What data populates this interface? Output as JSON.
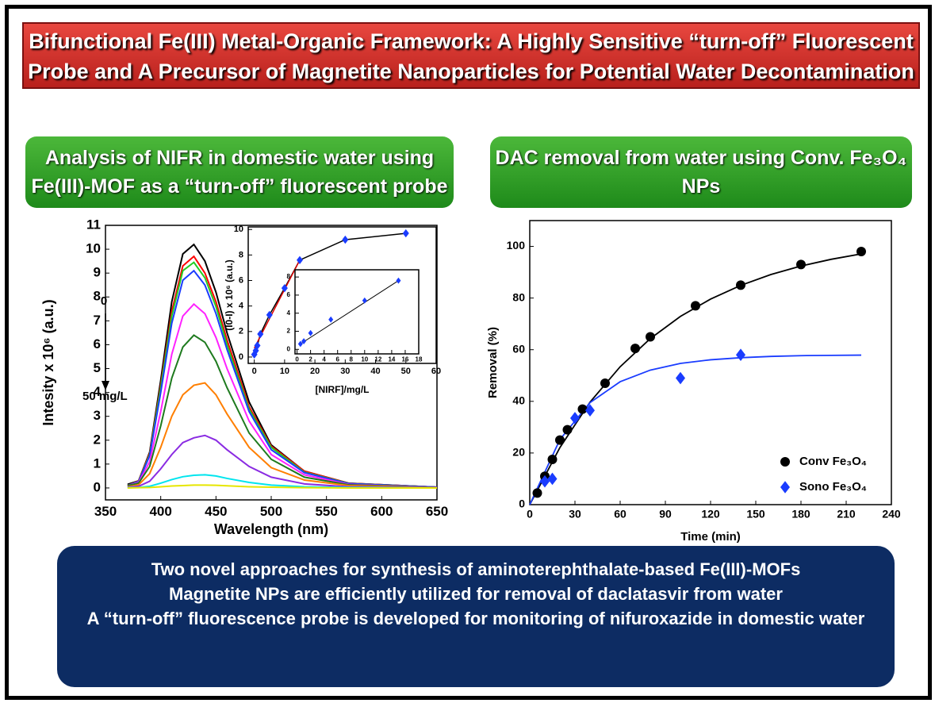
{
  "header": {
    "title": [
      "Bifunctional Fe(III) Metal-Organic Framework: A Highly Sensitive “turn-off” Fluorescent",
      "Probe and A Precursor of Magnetite Nanoparticles for Potential Water Decontamination"
    ]
  },
  "left_panel": {
    "heading": [
      "Analysis of NIFR in domestic water using",
      "Fe(III)-MOF as a “turn-off” fluorescent probe"
    ]
  },
  "right_panel": {
    "heading": [
      "DAC removal from water using Conv. Fe₃O₄",
      "NPs"
    ]
  },
  "summary": [
    "Two novel approaches for synthesis of aminoterephthalate-based Fe(III)-MOFs",
    "Magnetite NPs are efficiently utilized for removal of daclatasvir from water",
    "A “turn-off” fluorescence probe is developed for monitoring of nifuroxazide in domestic water"
  ],
  "chart_data": [
    {
      "type": "line",
      "xlabel": "Wavelength (nm)",
      "ylabel": "Intesity x 10⁶ (a.u.)",
      "annotations": [
        "0",
        "50 mg/L"
      ],
      "x": [
        370,
        380,
        390,
        400,
        410,
        420,
        430,
        440,
        450,
        460,
        480,
        500,
        530,
        570,
        650
      ],
      "series": [
        {
          "color": "#000000",
          "values": [
            0.15,
            0.3,
            1.5,
            4.5,
            7.8,
            9.8,
            10.2,
            9.5,
            8.2,
            6.5,
            3.6,
            1.8,
            0.7,
            0.2,
            0.03
          ]
        },
        {
          "color": "#ff0000",
          "values": [
            0.1,
            0.3,
            1.45,
            4.3,
            7.4,
            9.3,
            9.7,
            9.0,
            7.8,
            6.2,
            3.4,
            1.75,
            0.7,
            0.2,
            0.03
          ]
        },
        {
          "color": "#22cc22",
          "values": [
            0.1,
            0.28,
            1.4,
            4.2,
            7.2,
            9.1,
            9.45,
            8.8,
            7.6,
            6.0,
            3.3,
            1.7,
            0.66,
            0.19,
            0.03
          ]
        },
        {
          "color": "#1a3cff",
          "values": [
            0.1,
            0.27,
            1.35,
            4.0,
            6.9,
            8.7,
            9.1,
            8.5,
            7.3,
            5.8,
            3.2,
            1.6,
            0.64,
            0.18,
            0.03
          ]
        },
        {
          "color": "#ff22ff",
          "values": [
            0.1,
            0.23,
            1.1,
            3.2,
            5.6,
            7.2,
            7.7,
            7.3,
            6.3,
            5.0,
            2.8,
            1.4,
            0.55,
            0.15,
            0.02
          ]
        },
        {
          "color": "#1e7a1e",
          "values": [
            0.1,
            0.2,
            0.9,
            2.6,
            4.6,
            5.9,
            6.4,
            6.1,
            5.3,
            4.2,
            2.3,
            1.2,
            0.45,
            0.13,
            0.02
          ]
        },
        {
          "color": "#ff7f00",
          "values": [
            0.05,
            0.13,
            0.6,
            1.7,
            3.0,
            3.9,
            4.3,
            4.4,
            3.9,
            3.1,
            1.7,
            0.85,
            0.33,
            0.1,
            0.01
          ]
        },
        {
          "color": "#8a2be2",
          "values": [
            0.03,
            0.07,
            0.28,
            0.8,
            1.4,
            1.9,
            2.1,
            2.2,
            2.0,
            1.6,
            0.9,
            0.45,
            0.17,
            0.05,
            0.01
          ]
        },
        {
          "color": "#00e5ee",
          "values": [
            0.01,
            0.02,
            0.07,
            0.2,
            0.35,
            0.47,
            0.53,
            0.55,
            0.5,
            0.4,
            0.23,
            0.12,
            0.05,
            0.02,
            0
          ]
        },
        {
          "color": "#e6e600",
          "values": [
            0,
            0.01,
            0.02,
            0.05,
            0.08,
            0.1,
            0.12,
            0.12,
            0.11,
            0.09,
            0.05,
            0.03,
            0.01,
            0,
            0
          ]
        }
      ],
      "xlim": [
        350,
        650
      ],
      "xticks": [
        350,
        400,
        450,
        500,
        550,
        600,
        650
      ],
      "ylim": [
        -0.5,
        11
      ],
      "yticks": [
        0,
        1,
        2,
        3,
        4,
        5,
        6,
        7,
        8,
        9,
        10,
        11
      ]
    },
    {
      "type": "scatter",
      "xlabel": "[NIRF]/mg/L",
      "ylabel": "(I0-I) x 10⁶ (a.u.)",
      "series": [
        {
          "color": "#000000",
          "mode": "line",
          "x": [
            0,
            0.5,
            1,
            2,
            5,
            10,
            15,
            30,
            50
          ],
          "values": [
            0.2,
            0.5,
            0.9,
            1.8,
            3.3,
            5.4,
            7.6,
            9.2,
            9.7
          ]
        },
        {
          "color": "#dd0000",
          "mode": "line",
          "x": [
            0,
            15
          ],
          "values": [
            0.7,
            7.6
          ]
        },
        {
          "color": "#1a3cff",
          "mode": "markers",
          "marker": "diamond",
          "x": [
            0,
            0.5,
            1,
            2,
            5,
            10,
            15,
            30,
            50
          ],
          "values": [
            0.2,
            0.5,
            0.9,
            1.8,
            3.3,
            5.4,
            7.6,
            9.2,
            9.7
          ]
        }
      ],
      "xlim": [
        -2,
        60
      ],
      "xticks": [
        0,
        10,
        20,
        30,
        40,
        50,
        60
      ],
      "ylim": [
        -0.5,
        10.2
      ],
      "yticks": [
        0,
        2,
        4,
        6,
        8,
        10
      ]
    },
    {
      "type": "scatter",
      "series": [
        {
          "color": "#000000",
          "mode": "line",
          "x": [
            0.5,
            15
          ],
          "values": [
            0.6,
            7.6
          ]
        },
        {
          "color": "#1a3cff",
          "mode": "markers",
          "marker": "diamond",
          "x": [
            0.5,
            1,
            2,
            5,
            10,
            15
          ],
          "values": [
            0.6,
            0.9,
            1.8,
            3.3,
            5.4,
            7.6
          ]
        }
      ],
      "xlim": [
        -0.3,
        18
      ],
      "xticks": [
        0,
        2,
        4,
        6,
        8,
        10,
        12,
        14,
        16,
        18
      ],
      "ylim": [
        -0.5,
        8.8
      ],
      "yticks": [
        0,
        2,
        4,
        6,
        8
      ]
    },
    {
      "type": "scatter",
      "xlabel": "Time (min)",
      "ylabel": "Removal (%)",
      "legend": "lower right",
      "series": [
        {
          "color": "#000000",
          "mode": "line",
          "x": [
            0,
            20,
            40,
            60,
            80,
            100,
            120,
            140,
            160,
            180,
            200,
            220
          ],
          "values": [
            0,
            22.1,
            39.7,
            53.4,
            64.3,
            72.9,
            79.6,
            84.9,
            89.1,
            92.4,
            95.0,
            97.1
          ]
        },
        {
          "color": "#1a3cff",
          "mode": "line",
          "x": [
            0,
            20,
            40,
            60,
            80,
            100,
            120,
            140,
            160,
            180,
            200,
            220
          ],
          "values": [
            0,
            25.2,
            39.5,
            47.6,
            52.1,
            54.7,
            56.1,
            56.9,
            57.4,
            57.7,
            57.8,
            57.9
          ]
        },
        {
          "name": "Conv Fe₃O₄",
          "color": "#000000",
          "mode": "markers",
          "marker": "circle",
          "x": [
            5,
            10,
            15,
            20,
            25,
            35,
            50,
            70,
            80,
            110,
            140,
            180,
            220
          ],
          "values": [
            4.5,
            11,
            17.5,
            25,
            29,
            37,
            47,
            60.5,
            65,
            77,
            85,
            93,
            98
          ]
        },
        {
          "name": "Sono Fe₃O₄",
          "color": "#1a3cff",
          "mode": "markers",
          "marker": "diamond",
          "x": [
            10,
            15,
            30,
            40,
            100,
            140
          ],
          "values": [
            9,
            10,
            33.5,
            36.5,
            49,
            58
          ]
        }
      ],
      "xlim": [
        0,
        240
      ],
      "xticks": [
        0,
        30,
        60,
        90,
        120,
        150,
        180,
        210,
        240
      ],
      "ylim": [
        0,
        110
      ],
      "yticks": [
        0,
        20,
        40,
        60,
        80,
        100
      ]
    }
  ]
}
